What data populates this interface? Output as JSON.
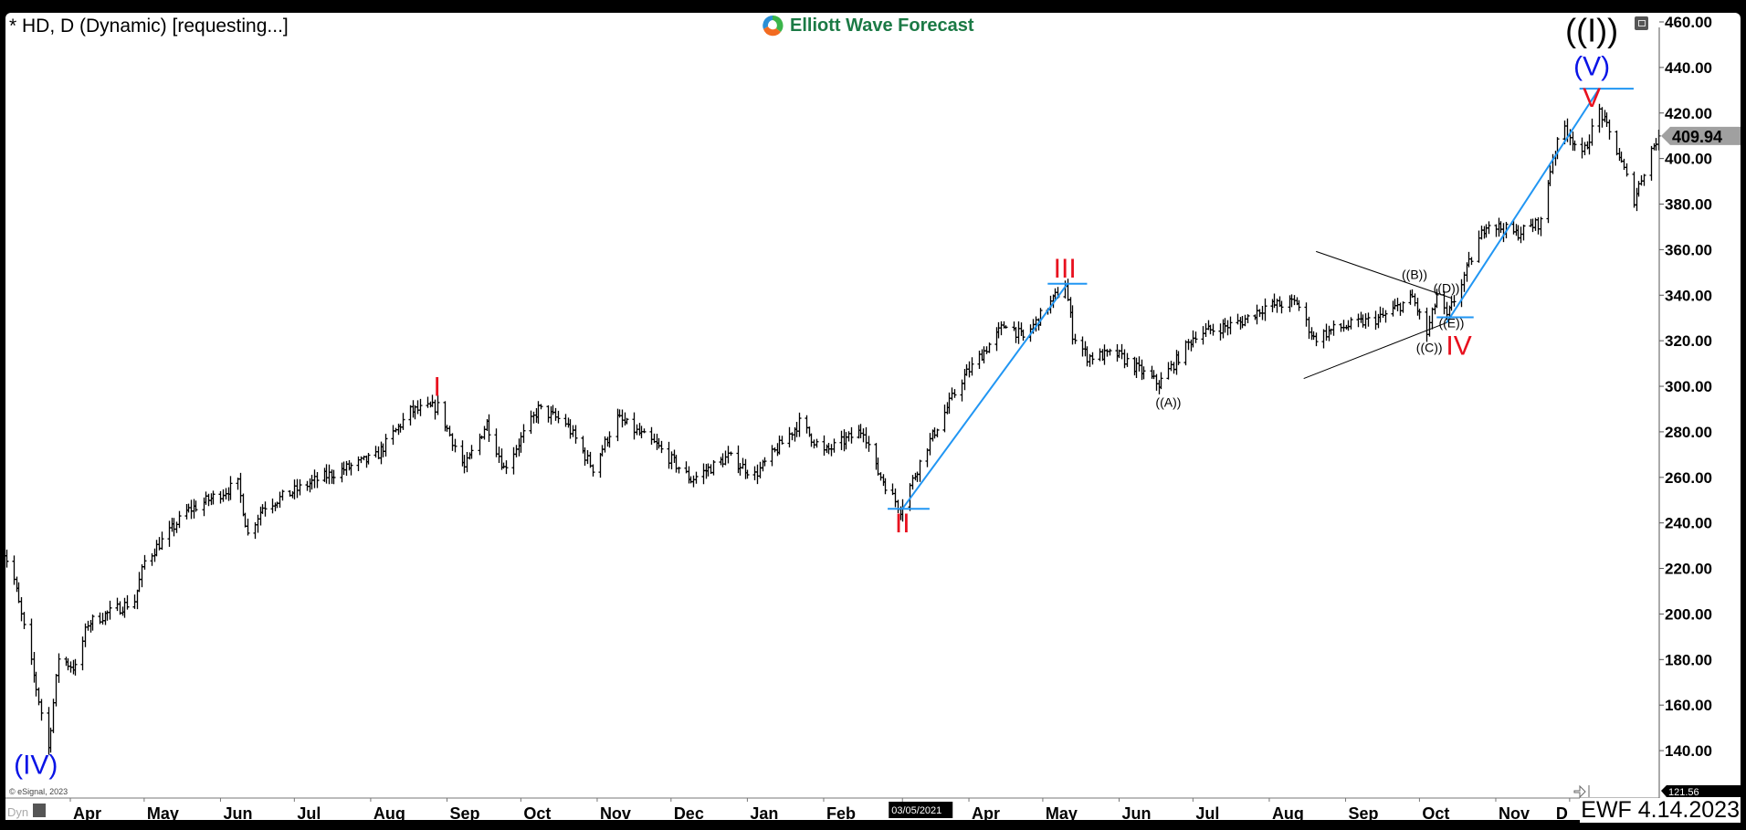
{
  "header": {
    "title": "* HD, D (Dynamic) [requesting...]",
    "logo_text": "Elliott Wave Forecast"
  },
  "footer": {
    "copyright": "© eSignal, 2023",
    "dyn_label": "Dyn",
    "stamp": "EWF 4.14.2023"
  },
  "colors": {
    "wave_red": "#e8101e",
    "wave_blue": "#0a14e6",
    "trend_blue": "#2196f3",
    "bars": "#000000",
    "last_price_badge": "#a0a0a0"
  },
  "chart_data": {
    "type": "ohlc-bar",
    "symbol": "HD",
    "interval": "D",
    "ylim": [
      125,
      465
    ],
    "y_ticks": [
      "460.00",
      "440.00",
      "420.00",
      "400.00",
      "380.00",
      "360.00",
      "340.00",
      "320.00",
      "300.00",
      "280.00",
      "260.00",
      "240.00",
      "220.00",
      "200.00",
      "180.00",
      "160.00",
      "140.00"
    ],
    "x_ticks": [
      {
        "date": "2020-04-01",
        "label": "Apr"
      },
      {
        "date": "2020-05-01",
        "label": "May"
      },
      {
        "date": "2020-06-01",
        "label": "Jun"
      },
      {
        "date": "2020-07-01",
        "label": "Jul"
      },
      {
        "date": "2020-08-01",
        "label": "Aug"
      },
      {
        "date": "2020-09-01",
        "label": "Sep"
      },
      {
        "date": "2020-10-01",
        "label": "Oct"
      },
      {
        "date": "2020-11-01",
        "label": "Nov"
      },
      {
        "date": "2020-12-01",
        "label": "Dec"
      },
      {
        "date": "2021-01-01",
        "label": "Jan"
      },
      {
        "date": "2021-02-01",
        "label": "Feb"
      },
      {
        "date": "2021-03-05",
        "label": "03/05/2021",
        "highlight": true
      },
      {
        "date": "2021-04-01",
        "label": "Apr"
      },
      {
        "date": "2021-05-01",
        "label": "May"
      },
      {
        "date": "2021-06-01",
        "label": "Jun"
      },
      {
        "date": "2021-07-01",
        "label": "Jul"
      },
      {
        "date": "2021-08-01",
        "label": "Aug"
      },
      {
        "date": "2021-09-01",
        "label": "Sep"
      },
      {
        "date": "2021-10-01",
        "label": "Oct"
      },
      {
        "date": "2021-11-01",
        "label": "Nov"
      },
      {
        "date": "2021-12-01",
        "label": "D"
      }
    ],
    "last_price": "409.94",
    "lower_badge": "121.56",
    "price_path": [
      [
        "2020-03-04",
        230
      ],
      [
        "2020-03-09",
        215
      ],
      [
        "2020-03-23",
        141
      ],
      [
        "2020-03-27",
        181
      ],
      [
        "2020-04-03",
        176
      ],
      [
        "2020-04-08",
        196
      ],
      [
        "2020-04-27",
        206
      ],
      [
        "2020-05-01",
        223
      ],
      [
        "2020-05-18",
        245
      ],
      [
        "2020-06-08",
        257
      ],
      [
        "2020-06-12",
        235
      ],
      [
        "2020-06-18",
        247
      ],
      [
        "2020-07-10",
        259
      ],
      [
        "2020-08-03",
        269
      ],
      [
        "2020-08-17",
        289
      ],
      [
        "2020-08-28",
        291
      ],
      [
        "2020-09-08",
        264
      ],
      [
        "2020-09-17",
        284
      ],
      [
        "2020-09-24",
        264
      ],
      [
        "2020-10-08",
        290
      ],
      [
        "2020-10-19",
        284
      ],
      [
        "2020-10-30",
        264
      ],
      [
        "2020-11-09",
        286
      ],
      [
        "2020-11-25",
        274
      ],
      [
        "2020-12-09",
        259
      ],
      [
        "2020-12-24",
        269
      ],
      [
        "2021-01-04",
        261
      ],
      [
        "2021-01-22",
        284
      ],
      [
        "2021-02-01",
        271
      ],
      [
        "2021-02-17",
        281
      ],
      [
        "2021-02-22",
        264
      ],
      [
        "2021-03-04",
        246
      ],
      [
        "2021-03-15",
        274
      ],
      [
        "2021-03-29",
        303
      ],
      [
        "2021-04-16",
        328
      ],
      [
        "2021-04-23",
        321
      ],
      [
        "2021-05-10",
        345
      ],
      [
        "2021-05-13",
        323
      ],
      [
        "2021-05-19",
        313
      ],
      [
        "2021-05-31",
        314
      ],
      [
        "2021-06-17",
        301
      ],
      [
        "2021-07-02",
        323
      ],
      [
        "2021-07-20",
        328
      ],
      [
        "2021-07-30",
        335
      ],
      [
        "2021-08-12",
        337
      ],
      [
        "2021-08-19",
        321
      ],
      [
        "2021-08-27",
        325
      ],
      [
        "2021-09-15",
        330
      ],
      [
        "2021-09-28",
        339
      ],
      [
        "2021-10-04",
        323
      ],
      [
        "2021-10-08",
        340
      ],
      [
        "2021-10-12",
        330
      ],
      [
        "2021-10-28",
        372
      ],
      [
        "2021-11-09",
        367
      ],
      [
        "2021-11-19",
        372
      ],
      [
        "2021-11-24",
        401
      ],
      [
        "2021-11-29",
        414
      ],
      [
        "2021-12-06",
        401
      ],
      [
        "2021-12-13",
        421
      ],
      [
        "2021-12-17",
        411
      ],
      [
        "2021-12-21",
        401
      ],
      [
        "2021-12-27",
        382
      ],
      [
        "2022-01-03",
        404
      ],
      [
        "2022-01-06",
        409.94
      ]
    ],
    "trendlines": [
      {
        "color": "trend_blue",
        "from": [
          "2021-03-05",
          246.2
        ],
        "to": [
          "2021-05-11",
          345
        ]
      },
      {
        "color": "trend_blue",
        "from": [
          "2021-02-27",
          246.2
        ],
        "to": [
          "2021-03-16",
          246.2
        ]
      },
      {
        "color": "trend_blue",
        "from": [
          "2021-05-03",
          345
        ],
        "to": [
          "2021-05-19",
          345
        ]
      },
      {
        "color": "trend_blue",
        "from": [
          "2021-10-12",
          327.9
        ],
        "to": [
          "2021-12-13",
          430.7
        ]
      },
      {
        "color": "trend_blue",
        "from": [
          "2021-10-08",
          330.3
        ],
        "to": [
          "2021-10-23",
          330.3
        ]
      },
      {
        "color": "trend_blue",
        "from": [
          "2021-12-05",
          430.7
        ],
        "to": [
          "2021-12-27",
          430.7
        ]
      },
      {
        "color": "bars",
        "from": [
          "2021-08-20",
          359.2
        ],
        "to": [
          "2021-10-14",
          338.7
        ]
      },
      {
        "color": "bars",
        "from": [
          "2021-08-15",
          303.4
        ],
        "to": [
          "2021-10-12",
          327.9
        ]
      }
    ],
    "wave_labels": [
      {
        "text": "(IV)",
        "date": "2020-03-18",
        "price": 134,
        "color": "wave_blue",
        "size": "large"
      },
      {
        "text": "I",
        "date": "2020-08-28",
        "price": 300,
        "color": "wave_red",
        "size": "large"
      },
      {
        "text": "II",
        "date": "2021-03-05",
        "price": 240,
        "color": "wave_red",
        "size": "large"
      },
      {
        "text": "III",
        "date": "2021-05-10",
        "price": 352,
        "color": "wave_red",
        "size": "large"
      },
      {
        "text": "IV",
        "date": "2021-10-17",
        "price": 318,
        "color": "wave_red",
        "size": "large"
      },
      {
        "text": "V",
        "date": "2021-12-10",
        "price": 427,
        "color": "wave_red",
        "size": "large"
      },
      {
        "text": "(V)",
        "date": "2021-12-10",
        "price": 440,
        "color": "wave_blue",
        "size": "large"
      },
      {
        "text": "((I))",
        "date": "2021-12-10",
        "price": 454,
        "color": "bars",
        "size": "xlarge"
      },
      {
        "text": "((A))",
        "date": "2021-06-21",
        "price": 293,
        "color": "bars",
        "size": "small"
      },
      {
        "text": "((B))",
        "date": "2021-09-29",
        "price": 349,
        "color": "bars",
        "size": "small"
      },
      {
        "text": "((C))",
        "date": "2021-10-05",
        "price": 317,
        "color": "bars",
        "size": "small"
      },
      {
        "text": "((D))",
        "date": "2021-10-12",
        "price": 343,
        "color": "bars",
        "size": "small"
      },
      {
        "text": "((E))",
        "date": "2021-10-14",
        "price": 327,
        "color": "bars",
        "size": "small"
      }
    ]
  }
}
